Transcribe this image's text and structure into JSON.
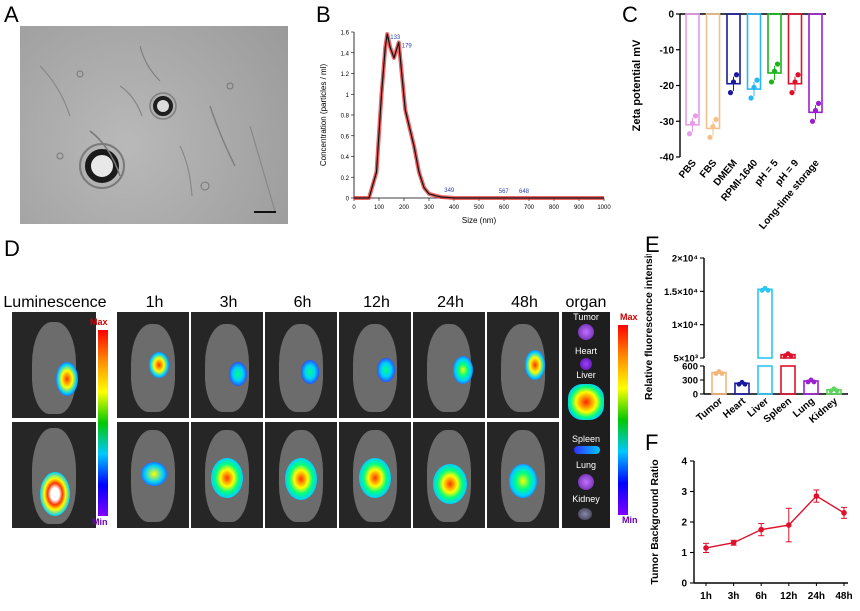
{
  "panels": {
    "a": "A",
    "b": "B",
    "c": "C",
    "d": "D",
    "e": "E",
    "f": "F"
  },
  "panel_d": {
    "luminescence": "Luminescence",
    "times": [
      "1h",
      "3h",
      "6h",
      "12h",
      "24h",
      "48h"
    ],
    "organ": "organ",
    "max": "Max",
    "min": "Min",
    "organs": [
      "Tumor",
      "Heart",
      "Liver",
      "Spleen",
      "Lung",
      "Kidney"
    ]
  },
  "chart_data": [
    {
      "panel": "B",
      "type": "line",
      "xlabel": "Size (nm)",
      "ylabel": "Concentration (particles / ml)",
      "xlim": [
        0,
        1000
      ],
      "ylim": [
        0,
        1.6
      ],
      "xticks": [
        "0",
        "100",
        "200",
        "300",
        "400",
        "500",
        "600",
        "700",
        "800",
        "900",
        "1000"
      ],
      "yticks": [
        "0",
        "0.2",
        "0.4",
        "0.6",
        "0.8",
        "1",
        "1.2",
        "1.4",
        "1.6"
      ],
      "peak_labels": [
        "133",
        "179",
        "349",
        "567",
        "648"
      ],
      "x": [
        0,
        60,
        90,
        110,
        125,
        133,
        145,
        160,
        179,
        195,
        205,
        220,
        240,
        260,
        280,
        300,
        330,
        349,
        400,
        567,
        648,
        800,
        1000
      ],
      "y": [
        0,
        0,
        0.25,
        1.0,
        1.45,
        1.58,
        1.45,
        1.35,
        1.5,
        1.1,
        0.85,
        0.7,
        0.5,
        0.25,
        0.1,
        0.04,
        0.02,
        0.01,
        0,
        0,
        0,
        0,
        0
      ]
    },
    {
      "panel": "C",
      "type": "bar",
      "ylabel": "Zeta potential mV",
      "ylim": [
        -40,
        0
      ],
      "yticks": [
        "0",
        "-10",
        "-20",
        "-30",
        "-40"
      ],
      "categories": [
        "PBS",
        "FBS",
        "DMEM",
        "RPMI-1640",
        "pH = 5",
        "pH = 9",
        "Long-time storage"
      ],
      "values": [
        -31,
        -32,
        -19.5,
        -21,
        -16.5,
        -19.5,
        -27.5
      ],
      "colors": [
        "#e89be8",
        "#f5c08a",
        "#1a1aa0",
        "#29b6f6",
        "#18b418",
        "#e0102a",
        "#9b1fd0"
      ]
    },
    {
      "panel": "E",
      "type": "bar",
      "ylabel": "Relative fluorescence intensit",
      "yticks": [
        "0",
        "300",
        "600",
        "5×10³",
        "1×10⁴",
        "1.5×10⁴",
        "2×10⁴"
      ],
      "categories": [
        "Tumor",
        "Heart",
        "Liver",
        "Spleen",
        "Lung",
        "Kidney"
      ],
      "values": [
        460,
        230,
        15300,
        5500,
        280,
        90
      ],
      "colors": [
        "#f5b57a",
        "#1a1aa0",
        "#29c6f6",
        "#e0102a",
        "#9b1fd0",
        "#5cd65c"
      ]
    },
    {
      "panel": "F",
      "type": "line",
      "ylabel": "Tumor Background Ratio",
      "ylim": [
        0,
        4
      ],
      "yticks": [
        "0",
        "1",
        "2",
        "3",
        "4"
      ],
      "categories": [
        "1h",
        "3h",
        "6h",
        "12h",
        "24h",
        "48h"
      ],
      "values": [
        1.15,
        1.32,
        1.75,
        1.9,
        2.85,
        2.3
      ],
      "errors": [
        0.15,
        0.08,
        0.2,
        0.55,
        0.2,
        0.18
      ],
      "color": "#e0102a"
    }
  ]
}
